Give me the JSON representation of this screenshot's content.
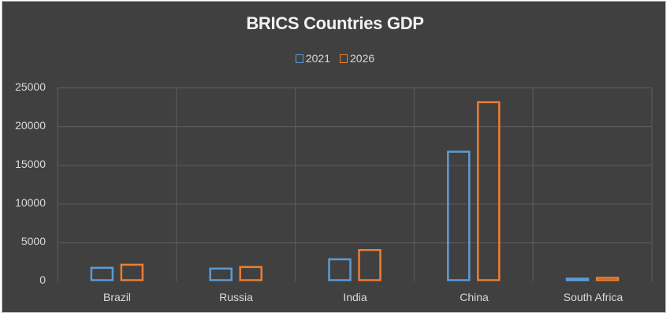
{
  "chart_data": {
    "type": "bar",
    "title": "BRICS Countries GDP",
    "xlabel": "",
    "ylabel": "",
    "categories": [
      "Brazil",
      "Russia",
      "India",
      "China",
      "South Africa"
    ],
    "series": [
      {
        "name": "2021",
        "color": "#5b9bd5",
        "values": [
          1900,
          1800,
          3000,
          16900,
          500
        ]
      },
      {
        "name": "2026",
        "color": "#ed7d31",
        "values": [
          2300,
          2000,
          4200,
          23300,
          600
        ]
      }
    ],
    "ylim": [
      0,
      25000
    ],
    "yticks": [
      "0",
      "5000",
      "10000",
      "15000",
      "20000",
      "25000"
    ],
    "grid": true,
    "legend_position": "top",
    "bar_style": "outlined"
  },
  "colors": {
    "background": "#404040",
    "grid": "#595959",
    "text": "#d9d9d9",
    "title": "#f2f2f2"
  }
}
